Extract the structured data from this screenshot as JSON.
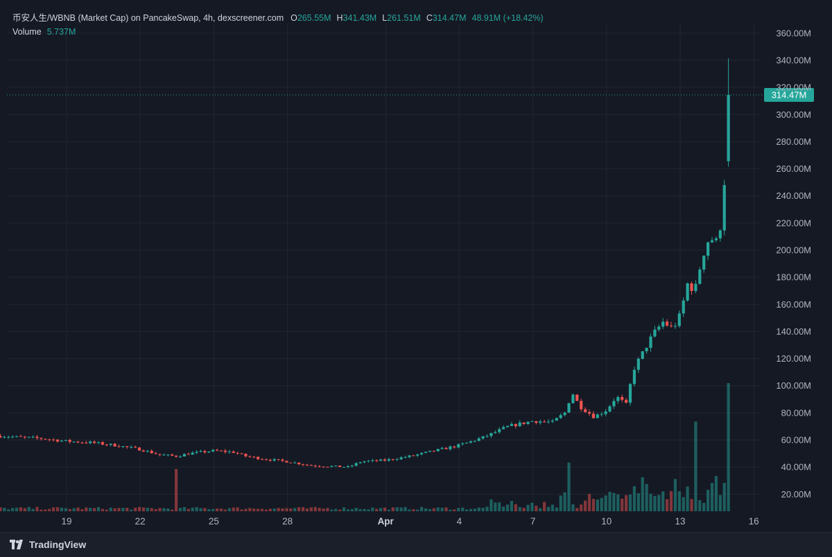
{
  "legend": {
    "title": "币安人生/WBNB (Market Cap) on PancakeSwap, 4h, dexscreener.com",
    "o_label": "O",
    "o_value": "265.55M",
    "h_label": "H",
    "h_value": "341.43M",
    "l_label": "L",
    "l_value": "261.51M",
    "c_label": "C",
    "c_value": "314.47M",
    "change": "48.91M (+18.42%)",
    "volume_label": "Volume",
    "volume_value": "5.737M"
  },
  "brand": {
    "name": "TradingView"
  },
  "colors": {
    "up": "#26a69a",
    "down": "#ef5350",
    "background": "#151924",
    "grid": "#222631"
  },
  "chart_data": {
    "type": "candlestick",
    "interval": "4h",
    "y_axis": {
      "ticks": [
        20,
        40,
        60,
        80,
        100,
        120,
        140,
        160,
        180,
        200,
        220,
        240,
        260,
        280,
        300,
        320,
        340,
        360
      ],
      "tick_labels": [
        "20.00M",
        "40.00M",
        "60.00M",
        "80.00M",
        "100.00M",
        "120.00M",
        "140.00M",
        "160.00M",
        "180.00M",
        "200.00M",
        "220.00M",
        "240.00M",
        "260.00M",
        "280.00M",
        "300.00M",
        "320.00M",
        "340.00M",
        "360.00M"
      ],
      "unit": "M",
      "range": [
        0,
        370
      ]
    },
    "x_axis": {
      "ticks": [
        {
          "label": "19",
          "day": 19
        },
        {
          "label": "22",
          "day": 22
        },
        {
          "label": "25",
          "day": 25
        },
        {
          "label": "28",
          "day": 28
        },
        {
          "label": "Apr",
          "day": 32,
          "bold": true
        },
        {
          "label": "4",
          "day": 35
        },
        {
          "label": "7",
          "day": 38
        },
        {
          "label": "10",
          "day": 41
        },
        {
          "label": "13",
          "day": 44
        },
        {
          "label": "16",
          "day": 47
        }
      ],
      "range_days": [
        16.3,
        48
      ]
    },
    "last_price": {
      "value": 314.47,
      "label": "314.47M"
    },
    "anchors": [
      [
        16.3,
        63
      ],
      [
        17,
        62
      ],
      [
        18,
        61
      ],
      [
        19,
        59
      ],
      [
        20,
        58
      ],
      [
        21,
        56
      ],
      [
        22,
        53
      ],
      [
        22.8,
        49
      ],
      [
        23.5,
        48
      ],
      [
        24,
        50
      ],
      [
        25,
        52
      ],
      [
        25.8,
        51
      ],
      [
        26.3,
        48
      ],
      [
        27,
        46
      ],
      [
        28,
        44
      ],
      [
        29,
        41
      ],
      [
        30.5,
        40
      ],
      [
        31,
        44
      ],
      [
        32,
        45
      ],
      [
        33,
        48
      ],
      [
        34,
        52
      ],
      [
        35,
        56
      ],
      [
        36,
        62
      ],
      [
        37,
        70
      ],
      [
        38,
        74
      ],
      [
        38.8,
        73
      ],
      [
        39.3,
        80
      ],
      [
        39.6,
        95
      ],
      [
        39.9,
        85
      ],
      [
        40.5,
        77
      ],
      [
        41,
        82
      ],
      [
        41.4,
        92
      ],
      [
        41.8,
        86
      ],
      [
        42.1,
        112
      ],
      [
        42.5,
        125
      ],
      [
        42.9,
        138
      ],
      [
        43.3,
        147
      ],
      [
        43.7,
        142
      ],
      [
        44,
        152
      ],
      [
        44.3,
        175
      ],
      [
        44.6,
        170
      ],
      [
        44.9,
        195
      ],
      [
        45.2,
        210
      ],
      [
        45.45,
        205
      ],
      [
        45.7,
        222
      ],
      [
        45.85,
        265
      ],
      [
        46.0,
        314.47
      ]
    ],
    "volume_highlights": [
      {
        "day": 23.5,
        "value": 33,
        "up": true
      },
      {
        "day": 39.55,
        "value": 38,
        "up": false
      },
      {
        "day": 44.55,
        "value": 70,
        "up": false
      },
      {
        "day": 46.0,
        "value": 100,
        "up": true
      }
    ],
    "volume_scale_max": 100
  }
}
